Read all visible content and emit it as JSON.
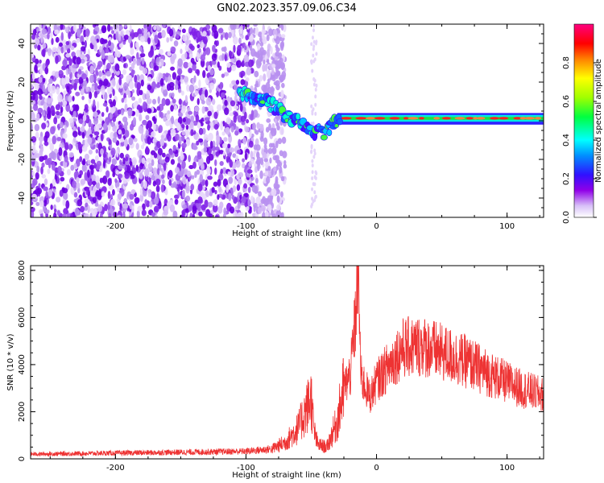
{
  "title": "GN02.2023.357.09.06.C34",
  "chart_data": [
    {
      "type": "heatmap",
      "xlabel": "Height of straight line (km)",
      "ylabel": "Frequency (Hz)",
      "xlim": [
        -265,
        128
      ],
      "ylim": [
        -50,
        50
      ],
      "xticks": [
        -200,
        -100,
        0,
        100
      ],
      "yticks": [
        -40,
        -20,
        0,
        20,
        40
      ],
      "colorbar": {
        "label": "Normalized spectral amplitude",
        "range": [
          0,
          1
        ],
        "ticks": [
          0.0,
          0.2,
          0.4,
          0.6,
          0.8
        ],
        "colors": [
          "#ffffff",
          "#c8a8f0",
          "#9000e8",
          "#3010ff",
          "#0090ff",
          "#00ffff",
          "#00ff40",
          "#a0ff00",
          "#ffff00",
          "#ff8000",
          "#ff0000",
          "#ff0080"
        ]
      },
      "features": [
        {
          "name": "noise",
          "x_range": [
            -265,
            -85
          ],
          "y_range": [
            -50,
            50
          ],
          "level": 0.15
        },
        {
          "name": "trace",
          "points": [
            [
              -105,
              15
            ],
            [
              -90,
              12
            ],
            [
              -80,
              8
            ],
            [
              -70,
              3
            ],
            [
              -60,
              0
            ],
            [
              -50,
              -5
            ],
            [
              -40,
              -6
            ],
            [
              -30,
              0
            ],
            [
              -20,
              1
            ],
            [
              0,
              2
            ],
            [
              50,
              1
            ],
            [
              128,
              1
            ]
          ]
        }
      ]
    },
    {
      "type": "line",
      "xlabel": "Height of straight line (km)",
      "ylabel": "SNR (10 * v/v)",
      "xlim": [
        -265,
        128
      ],
      "ylim": [
        0,
        8200
      ],
      "xticks": [
        -200,
        -100,
        0,
        100
      ],
      "yticks": [
        0,
        2000,
        4000,
        6000,
        8000
      ],
      "color": "#ee3333",
      "envelope": [
        [
          -265,
          200
        ],
        [
          -150,
          280
        ],
        [
          -100,
          320
        ],
        [
          -80,
          420
        ],
        [
          -70,
          700
        ],
        [
          -60,
          1300
        ],
        [
          -50,
          2600
        ],
        [
          -48,
          1200
        ],
        [
          -45,
          600
        ],
        [
          -38,
          500
        ],
        [
          -30,
          1600
        ],
        [
          -25,
          3000
        ],
        [
          -20,
          3600
        ],
        [
          -16,
          6000
        ],
        [
          -14,
          8200
        ],
        [
          -12,
          3500
        ],
        [
          -5,
          2600
        ],
        [
          0,
          3300
        ],
        [
          10,
          4000
        ],
        [
          20,
          4700
        ],
        [
          35,
          4800
        ],
        [
          50,
          4500
        ],
        [
          70,
          4100
        ],
        [
          90,
          3500
        ],
        [
          110,
          3000
        ],
        [
          128,
          2700
        ]
      ]
    }
  ]
}
